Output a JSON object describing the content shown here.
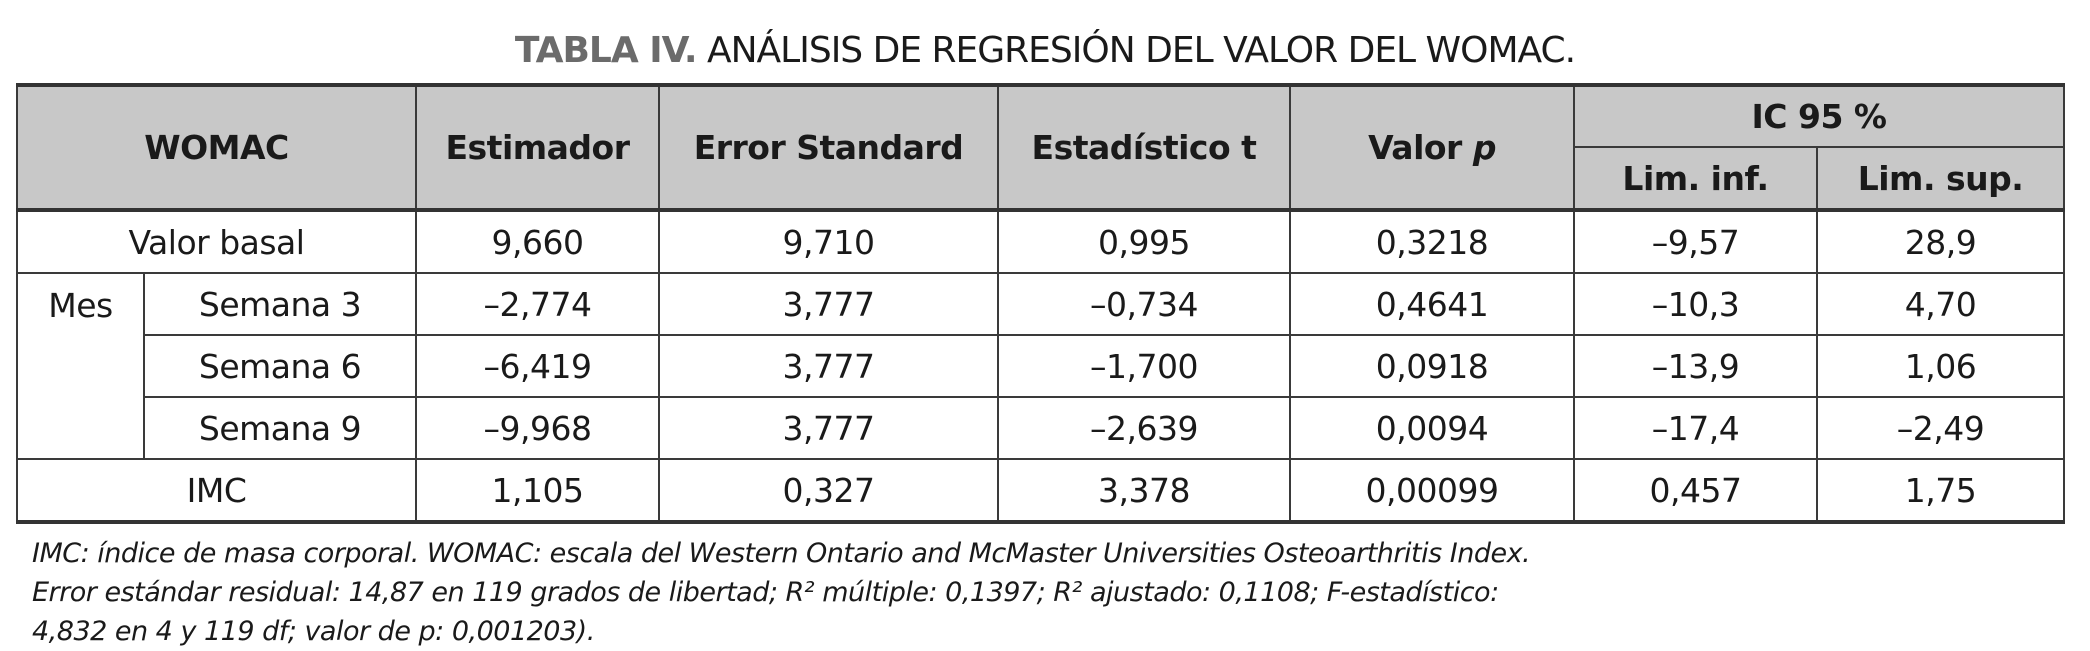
{
  "title": {
    "lead": "TABLA IV.",
    "text": "ANÁLISIS DE REGRESIÓN DEL VALOR DEL WOMAC."
  },
  "headers": {
    "womac": "WOMAC",
    "estimador": "Estimador",
    "error": "Error Standard",
    "estadistico": "Estadístico t",
    "valor_p_label": "Valor ",
    "valor_p_italic": "p",
    "ic": "IC 95 %",
    "lim_inf": "Lim. inf.",
    "lim_sup": "Lim. sup."
  },
  "group_label": "Mes",
  "rows": [
    {
      "label": "Valor basal",
      "values": [
        "9,660",
        "9,710",
        "0,995",
        "0,3218",
        "–9,57",
        "28,9"
      ]
    },
    {
      "label": "Semana 3",
      "values": [
        "–2,774",
        "3,777",
        "–0,734",
        "0,4641",
        "–10,3",
        "4,70"
      ]
    },
    {
      "label": "Semana 6",
      "values": [
        "–6,419",
        "3,777",
        "–1,700",
        "0,0918",
        "–13,9",
        "1,06"
      ]
    },
    {
      "label": "Semana 9",
      "values": [
        "–9,968",
        "3,777",
        "–2,639",
        "0,0094",
        "–17,4",
        "–2,49"
      ]
    },
    {
      "label": "IMC",
      "values": [
        "1,105",
        "0,327",
        "3,378",
        "0,00099",
        "0,457",
        "1,75"
      ]
    }
  ],
  "notes": [
    "IMC: índice de masa corporal. WOMAC: escala del Western Ontario and McMaster Universities Osteoarthritis Index.",
    "Error estándar residual: 14,87 en 119 grados de libertad; R² múltiple: 0,1397; R² ajustado: 0,1108; F-estadístico:",
    "4,832 en 4 y 119 df; valor de p: 0,001203)."
  ]
}
